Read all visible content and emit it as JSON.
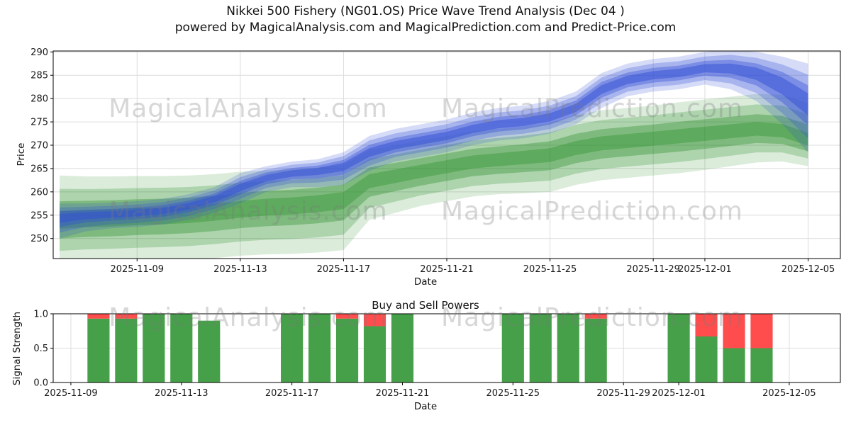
{
  "title": {
    "line1": "Nikkei 500 Fishery (NG01.OS) Price Wave Trend Analysis (Dec 04 )",
    "line2": "powered by MagicalAnalysis.com and MagicalPrediction.com and Predict-Price.com"
  },
  "watermark": {
    "left": "MagicalAnalysis.com",
    "right": "MagicalPrediction.com"
  },
  "colors": {
    "band_blue": "#3350d6",
    "band_green": "#228b22",
    "bar_buy": "#46a049",
    "bar_sell": "#ff4d4d",
    "grid": "#dcdcdc",
    "axis": "#000000",
    "text": "#1a1a1a"
  },
  "chart_data": [
    {
      "type": "area",
      "title": "",
      "ylabel": "Price",
      "xlabel": "Date",
      "x_origin_date": "2025-11-06",
      "xlim_days": [
        -0.25,
        30.25
      ],
      "ylim": [
        245.7,
        290.2
      ],
      "yticks": [
        {
          "v": 250,
          "label": "250"
        },
        {
          "v": 255,
          "label": "255"
        },
        {
          "v": 260,
          "label": "260"
        },
        {
          "v": 265,
          "label": "265"
        },
        {
          "v": 270,
          "label": "270"
        },
        {
          "v": 275,
          "label": "275"
        },
        {
          "v": 280,
          "label": "280"
        },
        {
          "v": 285,
          "label": "285"
        },
        {
          "v": 290,
          "label": "290"
        }
      ],
      "xticks": [
        {
          "day": 3,
          "label": "2025-11-09"
        },
        {
          "day": 7,
          "label": "2025-11-13"
        },
        {
          "day": 11,
          "label": "2025-11-17"
        },
        {
          "day": 15,
          "label": "2025-11-21"
        },
        {
          "day": 19,
          "label": "2025-11-25"
        },
        {
          "day": 23,
          "label": "2025-11-29"
        },
        {
          "day": 25,
          "label": "2025-12-01"
        },
        {
          "day": 29,
          "label": "2025-12-05"
        }
      ],
      "days": [
        0,
        1,
        2,
        3,
        4,
        5,
        6,
        7,
        8,
        9,
        10,
        11,
        12,
        13,
        14,
        15,
        16,
        17,
        18,
        19,
        20,
        21,
        22,
        23,
        24,
        25,
        26,
        27,
        28,
        29
      ],
      "dates": [
        "2025-11-06",
        "2025-11-07",
        "2025-11-08",
        "2025-11-09",
        "2025-11-10",
        "2025-11-11",
        "2025-11-12",
        "2025-11-13",
        "2025-11-14",
        "2025-11-15",
        "2025-11-16",
        "2025-11-17",
        "2025-11-18",
        "2025-11-19",
        "2025-11-20",
        "2025-11-21",
        "2025-11-22",
        "2025-11-23",
        "2025-11-24",
        "2025-11-25",
        "2025-11-26",
        "2025-11-27",
        "2025-11-28",
        "2025-11-29",
        "2025-11-30",
        "2025-12-01",
        "2025-12-02",
        "2025-12-03",
        "2025-12-04",
        "2025-12-05"
      ],
      "series": [
        {
          "name": "trend-band-green",
          "color": "#228b22",
          "center": [
            254.0,
            254.3,
            254.5,
            254.8,
            255.0,
            255.3,
            255.8,
            256.5,
            257.0,
            257.3,
            257.8,
            258.5,
            262.5,
            263.5,
            264.5,
            265.5,
            266.5,
            267.0,
            267.5,
            268.0,
            269.5,
            270.5,
            271.0,
            271.5,
            272.0,
            272.5,
            273.0,
            273.5,
            273.0,
            271.0
          ],
          "spread_up": [
            9.5,
            9.0,
            8.8,
            8.6,
            8.4,
            8.2,
            8.0,
            7.8,
            7.6,
            7.5,
            7.4,
            7.3,
            6.5,
            6.5,
            6.5,
            6.5,
            6.5,
            6.5,
            6.5,
            6.8,
            7.0,
            7.0,
            7.0,
            7.0,
            7.2,
            7.3,
            7.4,
            7.5,
            7.8,
            8.0
          ],
          "spread_dn": [
            9.5,
            9.5,
            9.6,
            9.7,
            9.8,
            9.9,
            10.0,
            10.2,
            10.4,
            10.6,
            10.8,
            11.0,
            8.5,
            8.0,
            7.5,
            7.5,
            7.5,
            7.5,
            7.8,
            8.0,
            8.0,
            8.0,
            8.0,
            8.0,
            8.0,
            7.8,
            7.5,
            7.2,
            6.5,
            5.5
          ],
          "layers": [
            {
              "f": 1.0,
              "alpha": 0.16
            },
            {
              "f": 0.7,
              "alpha": 0.25
            },
            {
              "f": 0.42,
              "alpha": 0.34
            },
            {
              "f": 0.2,
              "alpha": 0.35
            }
          ]
        },
        {
          "name": "prediction-band-blue",
          "color": "#3350d6",
          "center": [
            254.5,
            255.0,
            255.2,
            255.5,
            256.0,
            257.0,
            258.5,
            261.0,
            263.0,
            264.0,
            264.5,
            265.5,
            268.5,
            270.0,
            271.0,
            272.0,
            273.5,
            274.5,
            275.0,
            276.0,
            278.0,
            282.0,
            284.0,
            285.0,
            285.5,
            286.5,
            286.5,
            285.5,
            283.0,
            279.0
          ],
          "spread_up": [
            3.0,
            2.5,
            2.5,
            2.5,
            2.5,
            2.5,
            2.5,
            3.0,
            2.5,
            2.5,
            2.5,
            3.0,
            3.5,
            3.5,
            3.5,
            3.5,
            3.5,
            3.5,
            3.5,
            3.5,
            3.5,
            3.5,
            3.5,
            3.5,
            3.5,
            3.5,
            4.0,
            4.5,
            6.0,
            8.5
          ],
          "spread_dn": [
            4.5,
            3.5,
            3.0,
            3.0,
            3.0,
            3.0,
            3.0,
            3.5,
            3.0,
            3.0,
            3.5,
            4.0,
            4.0,
            3.5,
            3.5,
            3.5,
            3.5,
            3.5,
            3.5,
            3.5,
            3.5,
            4.0,
            3.5,
            3.5,
            3.5,
            3.5,
            4.5,
            6.0,
            8.5,
            10.5
          ],
          "layers": [
            {
              "f": 1.0,
              "alpha": 0.2
            },
            {
              "f": 0.72,
              "alpha": 0.28
            },
            {
              "f": 0.45,
              "alpha": 0.38
            },
            {
              "f": 0.25,
              "alpha": 0.5
            }
          ]
        }
      ]
    },
    {
      "type": "bar",
      "title": "Buy and Sell Powers",
      "ylabel": "Signal Strength",
      "xlabel": "Date",
      "x_origin_date": "2025-11-06",
      "xlim_days": [
        2.36,
        30.85
      ],
      "ylim": [
        0,
        1.0
      ],
      "bar_width_days": 0.8,
      "yticks": [
        {
          "v": 0,
          "label": "0.0"
        },
        {
          "v": 0.5,
          "label": "0.5"
        },
        {
          "v": 1,
          "label": "1.0"
        }
      ],
      "xticks": [
        {
          "day": 3,
          "label": "2025-11-09"
        },
        {
          "day": 7,
          "label": "2025-11-13"
        },
        {
          "day": 11,
          "label": "2025-11-17"
        },
        {
          "day": 15,
          "label": "2025-11-21"
        },
        {
          "day": 19,
          "label": "2025-11-25"
        },
        {
          "day": 23,
          "label": "2025-11-29"
        },
        {
          "day": 25,
          "label": "2025-12-01"
        },
        {
          "day": 29,
          "label": "2025-12-05"
        }
      ],
      "bars": [
        {
          "date": "2025-11-10",
          "day": 4,
          "buy": 0.93,
          "sell": 0.07
        },
        {
          "date": "2025-11-11",
          "day": 5,
          "buy": 0.93,
          "sell": 0.07
        },
        {
          "date": "2025-11-12",
          "day": 6,
          "buy": 1.0,
          "sell": 0.0
        },
        {
          "date": "2025-11-13",
          "day": 7,
          "buy": 1.0,
          "sell": 0.0
        },
        {
          "date": "2025-11-14",
          "day": 8,
          "buy": 0.9,
          "sell": 0.0
        },
        {
          "date": "2025-11-17",
          "day": 11,
          "buy": 1.0,
          "sell": 0.0
        },
        {
          "date": "2025-11-18",
          "day": 12,
          "buy": 1.0,
          "sell": 0.0
        },
        {
          "date": "2025-11-19",
          "day": 13,
          "buy": 0.93,
          "sell": 0.07
        },
        {
          "date": "2025-11-20",
          "day": 14,
          "buy": 0.82,
          "sell": 0.18
        },
        {
          "date": "2025-11-21",
          "day": 15,
          "buy": 1.0,
          "sell": 0.0
        },
        {
          "date": "2025-11-25",
          "day": 19,
          "buy": 1.0,
          "sell": 0.0
        },
        {
          "date": "2025-11-26",
          "day": 20,
          "buy": 1.0,
          "sell": 0.0
        },
        {
          "date": "2025-11-27",
          "day": 21,
          "buy": 1.0,
          "sell": 0.0
        },
        {
          "date": "2025-11-28",
          "day": 22,
          "buy": 0.93,
          "sell": 0.07
        },
        {
          "date": "2025-12-01",
          "day": 25,
          "buy": 1.0,
          "sell": 0.0
        },
        {
          "date": "2025-12-02",
          "day": 26,
          "buy": 0.67,
          "sell": 0.33
        },
        {
          "date": "2025-12-03",
          "day": 27,
          "buy": 0.5,
          "sell": 0.5
        },
        {
          "date": "2025-12-04",
          "day": 28,
          "buy": 0.5,
          "sell": 0.5
        }
      ]
    }
  ]
}
